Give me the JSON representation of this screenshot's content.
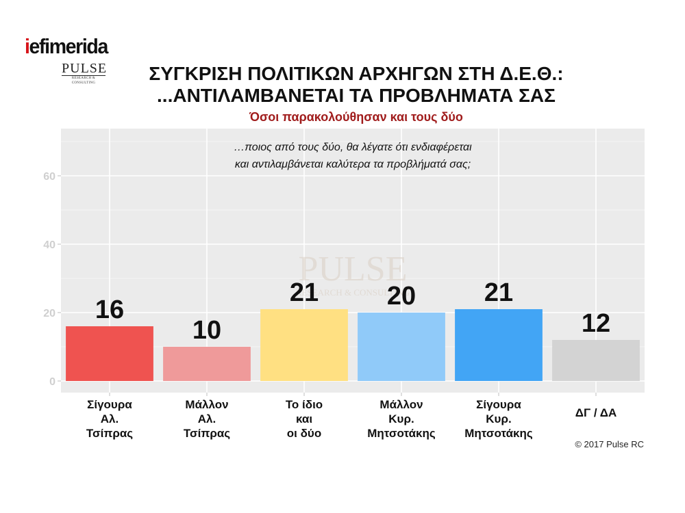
{
  "logo": {
    "brand_prefix": "i",
    "brand_rest": "efimerida",
    "pulse": "PULSE",
    "pulse_sub": "RESEARCH & CONSULTING"
  },
  "header": {
    "title_line1": "ΣΥΓΚΡΙΣΗ ΠΟΛΙΤΙΚΩΝ ΑΡΧΗΓΩΝ ΣΤΗ Δ.Ε.Θ.:",
    "title_line2": "...ΑΝΤΙΛΑΜΒΑΝΕΤΑΙ ΤΑ ΠΡΟΒΛΗΜΑΤΑ ΣΑΣ",
    "subtitle": "Όσοι παρακολούθησαν και τους δύο"
  },
  "chart_data": {
    "type": "bar",
    "question_lines": [
      "…ποιος από τους δύο, θα λέγατε ότι ενδιαφέρεται",
      "και αντιλαμβάνεται καλύτερα τα προβλήματά σας;"
    ],
    "categories": [
      [
        "Σίγουρα",
        "Αλ.",
        "Τσίπρας"
      ],
      [
        "Μάλλον",
        "Αλ.",
        "Τσίπρας"
      ],
      [
        "Το ίδιο",
        "και",
        "οι δύο"
      ],
      [
        "Μάλλον",
        "Κυρ.",
        "Μητσοτάκης"
      ],
      [
        "Σίγουρα",
        "Κυρ.",
        "Μητσοτάκης"
      ],
      [
        "ΔΓ / ΔΑ"
      ]
    ],
    "values": [
      16,
      10,
      21,
      20,
      21,
      12
    ],
    "colors": [
      "#ef5350",
      "#ef9a9a",
      "#ffe082",
      "#90caf9",
      "#42a5f5",
      "#d3d3d3"
    ],
    "ylim": [
      0,
      72
    ],
    "yticks": [
      0,
      20,
      40,
      60
    ],
    "grid": true,
    "xlabel": "",
    "ylabel": "",
    "watermark": "PULSE",
    "watermark_sub": "RESEARCH & CONSULTING"
  },
  "footer": {
    "copyright": "© 2017 Pulse RC"
  }
}
